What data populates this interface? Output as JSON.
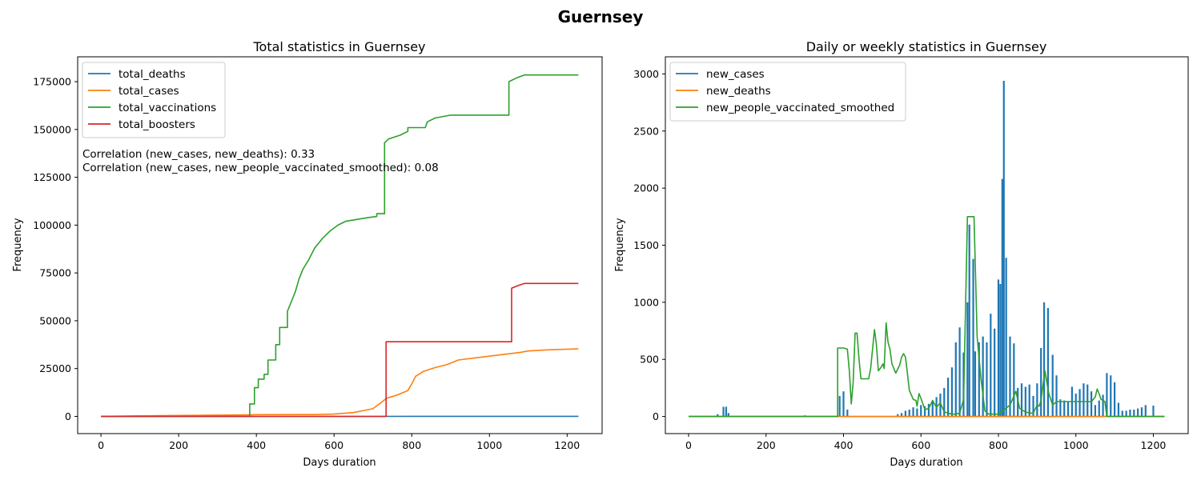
{
  "figure": {
    "suptitle": "Guernsey"
  },
  "chart_data": [
    {
      "type": "line",
      "title": "Total statistics in Guernsey",
      "xlabel": "Days duration",
      "ylabel": "Frequency",
      "xlim": [
        -60,
        1290
      ],
      "ylim": [
        -9000,
        188000
      ],
      "xticks": [
        0,
        200,
        400,
        600,
        800,
        1000,
        1200
      ],
      "yticks": [
        0,
        25000,
        50000,
        75000,
        100000,
        125000,
        150000,
        175000
      ],
      "legend_position": "upper left",
      "annotations": [
        "Correlation (new_cases, new_deaths): 0.33",
        "Correlation (new_cases, new_people_vaccinated_smoothed): 0.08"
      ],
      "series": [
        {
          "name": "total_deaths",
          "color": "#1f77b4",
          "points": [
            [
              0,
              0
            ],
            [
              200,
              0
            ],
            [
              400,
              5
            ],
            [
              700,
              10
            ],
            [
              1000,
              14
            ],
            [
              1229,
              16
            ]
          ]
        },
        {
          "name": "total_cases",
          "color": "#ff7f0e",
          "points": [
            [
              0,
              0
            ],
            [
              100,
              300
            ],
            [
              380,
              800
            ],
            [
              400,
              900
            ],
            [
              550,
              950
            ],
            [
              600,
              1200
            ],
            [
              650,
              2000
            ],
            [
              700,
              4000
            ],
            [
              720,
              7000
            ],
            [
              735,
              9500
            ],
            [
              760,
              11000
            ],
            [
              790,
              13500
            ],
            [
              800,
              17000
            ],
            [
              810,
              21000
            ],
            [
              830,
              23500
            ],
            [
              860,
              25500
            ],
            [
              890,
              27000
            ],
            [
              920,
              29500
            ],
            [
              960,
              30500
            ],
            [
              1000,
              31500
            ],
            [
              1040,
              32500
            ],
            [
              1080,
              33500
            ],
            [
              1100,
              34200
            ],
            [
              1150,
              34800
            ],
            [
              1229,
              35300
            ]
          ]
        },
        {
          "name": "total_vaccinations",
          "color": "#2ca02c",
          "points": [
            [
              0,
              0
            ],
            [
              383,
              0
            ],
            [
              383,
              6500
            ],
            [
              395,
              6500
            ],
            [
              395,
              15000
            ],
            [
              405,
              15000
            ],
            [
              405,
              19500
            ],
            [
              420,
              19500
            ],
            [
              420,
              22000
            ],
            [
              430,
              22000
            ],
            [
              430,
              29500
            ],
            [
              450,
              29500
            ],
            [
              450,
              37500
            ],
            [
              460,
              37500
            ],
            [
              460,
              46500
            ],
            [
              480,
              46500
            ],
            [
              480,
              55000
            ],
            [
              490,
              60000
            ],
            [
              500,
              65000
            ],
            [
              510,
              72000
            ],
            [
              520,
              77000
            ],
            [
              535,
              82000
            ],
            [
              550,
              88000
            ],
            [
              570,
              93000
            ],
            [
              590,
              97000
            ],
            [
              610,
              100000
            ],
            [
              630,
              102000
            ],
            [
              660,
              103000
            ],
            [
              690,
              104000
            ],
            [
              710,
              104500
            ],
            [
              710,
              106000
            ],
            [
              730,
              106000
            ],
            [
              730,
              143000
            ],
            [
              740,
              145000
            ],
            [
              770,
              147000
            ],
            [
              790,
              149000
            ],
            [
              790,
              151000
            ],
            [
              835,
              151000
            ],
            [
              840,
              154000
            ],
            [
              860,
              156000
            ],
            [
              900,
              157500
            ],
            [
              1050,
              157500
            ],
            [
              1050,
              175000
            ],
            [
              1070,
              177000
            ],
            [
              1090,
              178500
            ],
            [
              1229,
              178500
            ]
          ]
        },
        {
          "name": "total_boosters",
          "color": "#d62728",
          "points": [
            [
              0,
              0
            ],
            [
              734,
              0
            ],
            [
              734,
              39000
            ],
            [
              1057,
              39000
            ],
            [
              1057,
              67000
            ],
            [
              1075,
              68500
            ],
            [
              1090,
              69500
            ],
            [
              1229,
              69500
            ]
          ]
        }
      ]
    },
    {
      "type": "line",
      "title": "Daily or weekly statistics in Guernsey",
      "xlabel": "Days duration",
      "ylabel": "Frequency",
      "xlim": [
        -60,
        1290
      ],
      "ylim": [
        -150,
        3150
      ],
      "xticks": [
        0,
        200,
        400,
        600,
        800,
        1000,
        1200
      ],
      "yticks": [
        0,
        500,
        1000,
        1500,
        2000,
        2500,
        3000
      ],
      "legend_position": "upper left",
      "series": [
        {
          "name": "new_cases",
          "color": "#1f77b4",
          "spikes": [
            [
              75,
              20
            ],
            [
              90,
              85
            ],
            [
              97,
              85
            ],
            [
              103,
              30
            ],
            [
              300,
              10
            ],
            [
              390,
              180
            ],
            [
              400,
              220
            ],
            [
              410,
              60
            ],
            [
              540,
              20
            ],
            [
              550,
              30
            ],
            [
              560,
              50
            ],
            [
              570,
              60
            ],
            [
              580,
              80
            ],
            [
              590,
              70
            ],
            [
              600,
              100
            ],
            [
              610,
              90
            ],
            [
              620,
              110
            ],
            [
              630,
              140
            ],
            [
              640,
              170
            ],
            [
              650,
              200
            ],
            [
              660,
              250
            ],
            [
              670,
              340
            ],
            [
              680,
              430
            ],
            [
              690,
              650
            ],
            [
              700,
              780
            ],
            [
              710,
              560
            ],
            [
              720,
              1000
            ],
            [
              725,
              1680
            ],
            [
              735,
              1380
            ],
            [
              740,
              570
            ],
            [
              750,
              650
            ],
            [
              760,
              700
            ],
            [
              770,
              650
            ],
            [
              780,
              900
            ],
            [
              790,
              770
            ],
            [
              800,
              1200
            ],
            [
              805,
              1160
            ],
            [
              810,
              2080
            ],
            [
              814,
              2940
            ],
            [
              820,
              1390
            ],
            [
              830,
              700
            ],
            [
              840,
              640
            ],
            [
              850,
              250
            ],
            [
              860,
              290
            ],
            [
              870,
              260
            ],
            [
              880,
              280
            ],
            [
              890,
              180
            ],
            [
              900,
              290
            ],
            [
              910,
              600
            ],
            [
              918,
              1000
            ],
            [
              928,
              950
            ],
            [
              940,
              540
            ],
            [
              950,
              360
            ],
            [
              960,
              150
            ],
            [
              970,
              140
            ],
            [
              980,
              130
            ],
            [
              990,
              260
            ],
            [
              1000,
              200
            ],
            [
              1010,
              240
            ],
            [
              1020,
              290
            ],
            [
              1030,
              280
            ],
            [
              1040,
              220
            ],
            [
              1050,
              100
            ],
            [
              1060,
              140
            ],
            [
              1070,
              190
            ],
            [
              1080,
              380
            ],
            [
              1090,
              360
            ],
            [
              1100,
              300
            ],
            [
              1110,
              120
            ],
            [
              1120,
              50
            ],
            [
              1130,
              50
            ],
            [
              1140,
              60
            ],
            [
              1150,
              60
            ],
            [
              1160,
              70
            ],
            [
              1170,
              80
            ],
            [
              1180,
              100
            ],
            [
              1200,
              95
            ]
          ]
        },
        {
          "name": "new_deaths",
          "color": "#ff7f0e",
          "points": [
            [
              0,
              0
            ],
            [
              1229,
              0
            ]
          ]
        },
        {
          "name": "new_people_vaccinated_smoothed",
          "color": "#2ca02c",
          "points": [
            [
              0,
              0
            ],
            [
              385,
              0
            ],
            [
              385,
              600
            ],
            [
              400,
              600
            ],
            [
              410,
              590
            ],
            [
              415,
              400
            ],
            [
              420,
              110
            ],
            [
              425,
              300
            ],
            [
              430,
              730
            ],
            [
              435,
              730
            ],
            [
              440,
              500
            ],
            [
              445,
              330
            ],
            [
              465,
              330
            ],
            [
              470,
              420
            ],
            [
              480,
              760
            ],
            [
              485,
              630
            ],
            [
              490,
              400
            ],
            [
              497,
              430
            ],
            [
              502,
              460
            ],
            [
              505,
              420
            ],
            [
              510,
              820
            ],
            [
              515,
              650
            ],
            [
              520,
              590
            ],
            [
              525,
              460
            ],
            [
              535,
              380
            ],
            [
              545,
              450
            ],
            [
              550,
              520
            ],
            [
              555,
              550
            ],
            [
              560,
              520
            ],
            [
              565,
              380
            ],
            [
              570,
              230
            ],
            [
              580,
              150
            ],
            [
              587,
              140
            ],
            [
              590,
              90
            ],
            [
              595,
              200
            ],
            [
              600,
              160
            ],
            [
              605,
              110
            ],
            [
              610,
              60
            ],
            [
              620,
              70
            ],
            [
              630,
              140
            ],
            [
              640,
              80
            ],
            [
              650,
              120
            ],
            [
              660,
              40
            ],
            [
              670,
              30
            ],
            [
              680,
              20
            ],
            [
              690,
              20
            ],
            [
              700,
              30
            ],
            [
              710,
              150
            ],
            [
              720,
              1750
            ],
            [
              737,
              1750
            ],
            [
              745,
              700
            ],
            [
              755,
              330
            ],
            [
              765,
              50
            ],
            [
              775,
              20
            ],
            [
              800,
              20
            ],
            [
              830,
              100
            ],
            [
              845,
              220
            ],
            [
              855,
              70
            ],
            [
              870,
              40
            ],
            [
              880,
              30
            ],
            [
              890,
              30
            ],
            [
              900,
              100
            ],
            [
              905,
              90
            ],
            [
              910,
              140
            ],
            [
              920,
              400
            ],
            [
              930,
              200
            ],
            [
              940,
              100
            ],
            [
              950,
              130
            ],
            [
              1000,
              130
            ],
            [
              1040,
              130
            ],
            [
              1045,
              150
            ],
            [
              1050,
              170
            ],
            [
              1055,
              240
            ],
            [
              1060,
              200
            ],
            [
              1065,
              150
            ],
            [
              1075,
              130
            ],
            [
              1080,
              0
            ],
            [
              1229,
              0
            ]
          ]
        }
      ]
    }
  ]
}
